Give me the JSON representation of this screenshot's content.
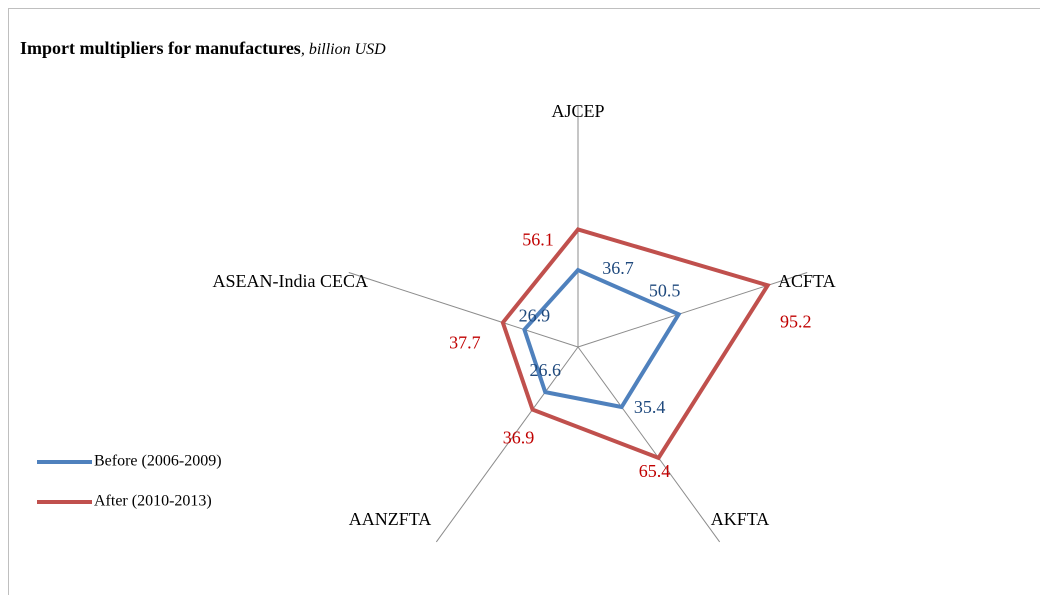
{
  "chart_data": {
    "type": "radar",
    "title": "Import multipliers for manufactures",
    "subtitle": ", billion USD",
    "categories": [
      "AJCEP",
      "ACFTA",
      "AKFTA",
      "AANZFTA",
      "ASEAN-India CECA"
    ],
    "series": [
      {
        "name": "Before (2006-2009)",
        "color": "#4f81bd",
        "values": [
          36.7,
          50.5,
          35.4,
          26.6,
          26.9
        ]
      },
      {
        "name": "After (2010-2013)",
        "color": "#c0504d",
        "values": [
          56.1,
          95.2,
          65.4,
          36.9,
          37.7
        ]
      }
    ],
    "rlim": [
      0,
      115
    ],
    "legend": "left"
  }
}
